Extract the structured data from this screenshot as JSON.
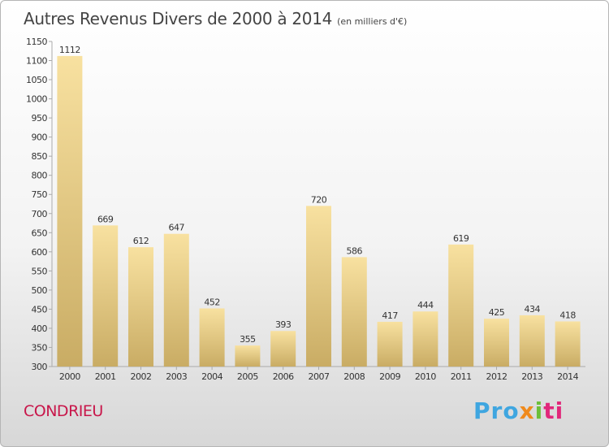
{
  "header": {
    "title": "Autres Revenus Divers de 2000 à 2014",
    "unit": "(en milliers d'€)"
  },
  "footer": {
    "commune": "CONDRIEU",
    "brand_parts": [
      "Pro",
      "x",
      "i",
      "ti"
    ]
  },
  "colors": {
    "bar_light": "#f8e1a0",
    "bar_dark": "#c9ac64",
    "axis": "#aaaaaa",
    "commune": "#c8164a"
  },
  "chart_data": {
    "type": "bar",
    "categories": [
      "2000",
      "2001",
      "2002",
      "2003",
      "2004",
      "2005",
      "2006",
      "2007",
      "2008",
      "2009",
      "2010",
      "2011",
      "2012",
      "2013",
      "2014"
    ],
    "values": [
      1112,
      669,
      612,
      647,
      452,
      355,
      393,
      720,
      586,
      417,
      444,
      619,
      425,
      434,
      418
    ],
    "ylim": [
      300,
      1150
    ],
    "yticks": [
      300,
      350,
      400,
      450,
      500,
      550,
      600,
      650,
      700,
      750,
      800,
      850,
      900,
      950,
      1000,
      1050,
      1100,
      1150
    ],
    "grid": false,
    "data_labels": true
  }
}
